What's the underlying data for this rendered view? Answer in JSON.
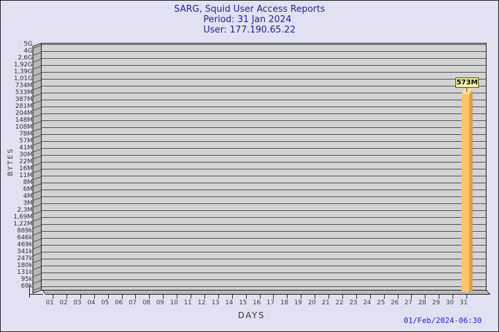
{
  "chart_data": {
    "type": "bar",
    "title": "SARG, Squid User Access Reports",
    "period": "Period: 31 Jan 2024",
    "user": "User: 177.190.65.22",
    "xlabel": "DAYS",
    "ylabel": "BYTES",
    "y_scale": "logarithmic",
    "ylim": [
      "69k",
      "5G"
    ],
    "grid": true,
    "legend": false,
    "y_tick_labels": [
      "5G",
      "4G",
      "2,6G",
      "1,92G",
      "1,39G",
      "1,01G",
      "734M",
      "533M",
      "387M",
      "281M",
      "204M",
      "148M",
      "108M",
      "78M",
      "57M",
      "41M",
      "30M",
      "22M",
      "16M",
      "11M",
      "8M",
      "6M",
      "4M",
      "3M",
      "2,3M",
      "1,69M",
      "1,22M",
      "889k",
      "646k",
      "469k",
      "341k",
      "247k",
      "180k",
      "131k",
      "95k",
      "69k"
    ],
    "categories": [
      "01",
      "02",
      "03",
      "04",
      "05",
      "06",
      "07",
      "08",
      "09",
      "10",
      "11",
      "12",
      "13",
      "14",
      "15",
      "16",
      "17",
      "18",
      "19",
      "20",
      "21",
      "22",
      "23",
      "24",
      "25",
      "26",
      "27",
      "28",
      "29",
      "30",
      "31"
    ],
    "values_megabytes": [
      0,
      0,
      0,
      0,
      0,
      0,
      0,
      0,
      0,
      0,
      0,
      0,
      0,
      0,
      0,
      0,
      0,
      0,
      0,
      0,
      0,
      0,
      0,
      0,
      0,
      0,
      0,
      0,
      0,
      0,
      573
    ],
    "data_label": "573M",
    "bar_color": "#fdc46e"
  },
  "footer": {
    "timestamp": "01/Feb/2024-06:30"
  },
  "colors": {
    "page_background": "#e1e1f2",
    "plot_face": "#d3d3d3",
    "plot_wall": "#b8b8b8",
    "grid_line": "#4f4f4f",
    "title_text": "#24248c",
    "timestamp_text": "#2121c8",
    "bar_main": "#fdc46e",
    "bar_side": "#dca04b",
    "bar_top": "#ffe197",
    "callout_background": "#f6f1a3",
    "callout_border": "#55550f"
  }
}
